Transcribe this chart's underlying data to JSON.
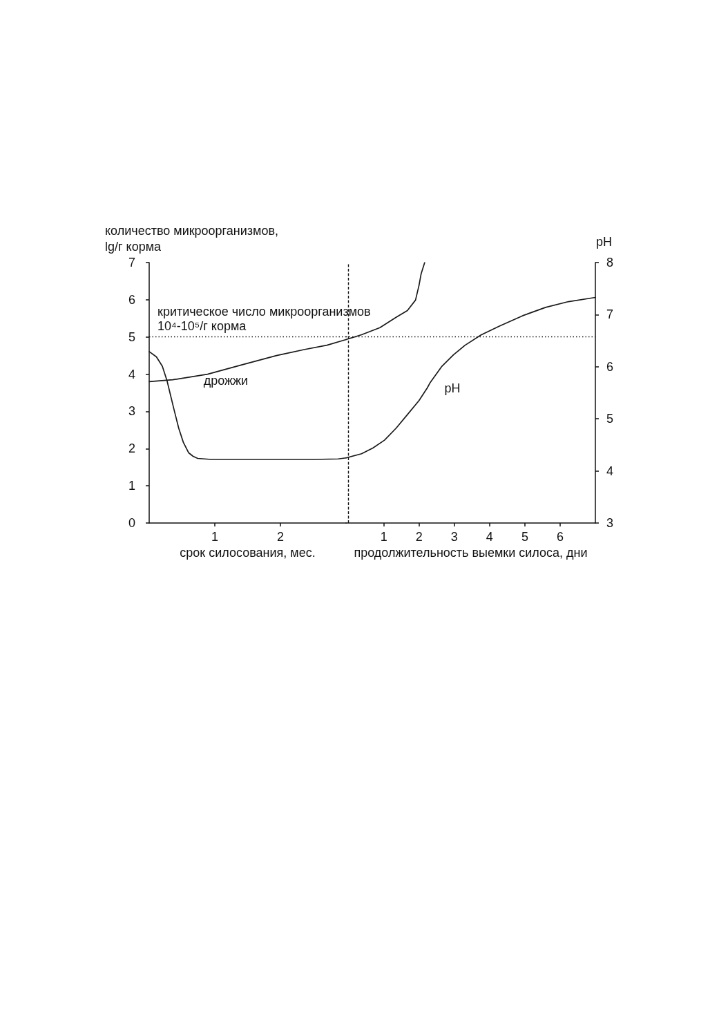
{
  "chart_data": [
    {
      "type": "line",
      "xlabel": "срок силосования, мес.",
      "ylabel": "количество микроорганизмов,\nlg/г корма",
      "xlim": [
        0,
        3
      ],
      "xticks": [
        1,
        2
      ],
      "ylim": [
        0,
        7
      ],
      "yticks": [
        0,
        1,
        2,
        3,
        4,
        5,
        6,
        7
      ],
      "y2lim": [
        3,
        8
      ],
      "series": [
        {
          "name": "дрожжи",
          "color": "#1a1a1a",
          "x": [
            0,
            0.36,
            0.89,
            1.41,
            1.94,
            2.36,
            2.71,
            3.0
          ],
          "values": [
            3.8,
            3.85,
            4.0,
            4.25,
            4.5,
            4.66,
            4.78,
            4.93
          ]
        },
        {
          "color": "#1a1a1a",
          "axis": "y2",
          "x": [
            0,
            0.11,
            0.2,
            0.27,
            0.32,
            0.38,
            0.45,
            0.52,
            0.6,
            0.67,
            0.74,
            0.95,
            1.94,
            2.5,
            2.88,
            3.0
          ],
          "values": [
            6.29,
            6.19,
            6.01,
            5.74,
            5.48,
            5.17,
            4.82,
            4.55,
            4.35,
            4.28,
            4.24,
            4.22,
            4.22,
            4.22,
            4.23,
            4.25
          ]
        }
      ],
      "ref_lines": [
        {
          "axis": "y",
          "value": 5,
          "label": "критическое число микроорганизмов\n10⁴-10⁵/г корма",
          "line_style": "dotted"
        }
      ]
    },
    {
      "type": "line",
      "xlabel": "продолжительность выемки силоса, дни",
      "y2label": "pH",
      "xlim": [
        -0.07,
        7
      ],
      "xticks": [
        1,
        2,
        3,
        4,
        5,
        6
      ],
      "ylim": [
        0,
        7
      ],
      "y2lim": [
        3,
        8
      ],
      "y2ticks": [
        3,
        4,
        5,
        6,
        7,
        8
      ],
      "series": [
        {
          "name": "pH",
          "color": "#1a1a1a",
          "axis": "y2",
          "x": [
            -0.07,
            0.37,
            0.69,
            1.02,
            1.35,
            1.67,
            2.0,
            2.23,
            2.32,
            2.65,
            2.98,
            3.3,
            3.76,
            4.28,
            4.94,
            5.59,
            6.24,
            7.0
          ],
          "values": [
            4.25,
            4.33,
            4.44,
            4.59,
            4.82,
            5.08,
            5.35,
            5.59,
            5.7,
            6.01,
            6.23,
            6.41,
            6.61,
            6.78,
            6.98,
            7.14,
            7.25,
            7.33
          ]
        },
        {
          "color": "#1a1a1a",
          "x": [
            -0.07,
            0.37,
            0.89,
            1.35,
            1.67,
            1.9,
            2.0,
            2.06,
            2.16
          ],
          "values": [
            4.93,
            5.06,
            5.25,
            5.53,
            5.71,
            5.99,
            6.39,
            6.7,
            7.0
          ]
        }
      ],
      "ref_lines": [
        {
          "axis": "y",
          "value": 5,
          "line_style": "dotted"
        },
        {
          "axis": "x",
          "value": 0,
          "line_style": "dashed"
        }
      ]
    }
  ]
}
